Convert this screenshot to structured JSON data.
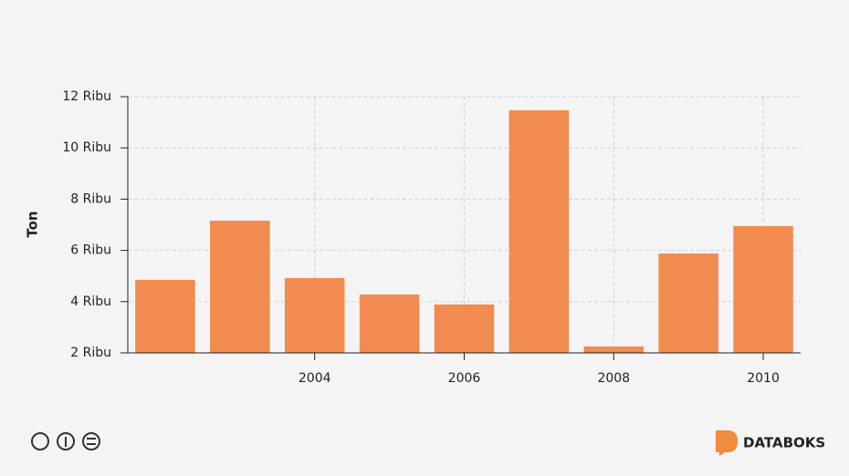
{
  "chart_data": {
    "type": "bar",
    "y_label": "Ton",
    "credit": "DATABOKS",
    "x": [
      2002,
      2003,
      2004,
      2005,
      2006,
      2007,
      2008,
      2009,
      2010
    ],
    "values": [
      4.85,
      7.16,
      4.92,
      4.28,
      3.89,
      11.47,
      2.25,
      5.88,
      6.95
    ],
    "color": "#f28b4f",
    "xlim": [
      2001.5,
      2010.5
    ],
    "xticks": [
      2004,
      2006,
      2008,
      2010
    ],
    "ylim": [
      2,
      12
    ],
    "yticks": [
      {
        "value": 2,
        "label": "2 Ribu"
      },
      {
        "value": 4,
        "label": "4 Ribu"
      },
      {
        "value": 6,
        "label": "6 Ribu"
      },
      {
        "value": 8,
        "label": "8 Ribu"
      },
      {
        "value": 10,
        "label": "10 Ribu"
      },
      {
        "value": 12,
        "label": "12 Ribu"
      }
    ],
    "grid": true
  }
}
